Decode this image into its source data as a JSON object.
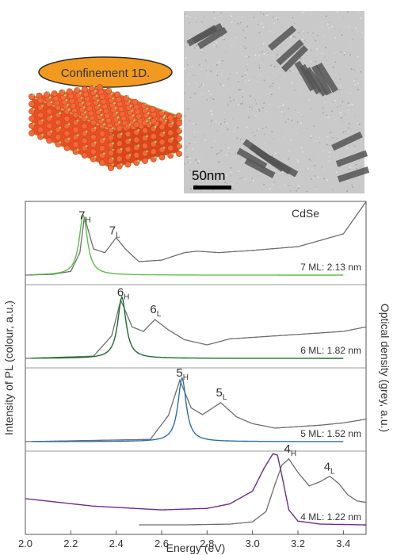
{
  "top": {
    "banner": "Confinement 1D.",
    "scale_bar": "50nm"
  },
  "chart_data": {
    "type": "line",
    "xlabel": "Energy (eV)",
    "ylabel_left": "Intensity of PL (colour, a.u.)",
    "ylabel_right": "Optical density (grey, a.u.)",
    "xlim": [
      2.0,
      3.5
    ],
    "xticks": [
      2.0,
      2.2,
      2.4,
      2.6,
      2.8,
      3.0,
      3.2,
      3.4
    ],
    "xtick_labels": [
      "2.0",
      "2.2",
      "2.4",
      "2.6",
      "2.8",
      "3.0",
      "3.2",
      "3.4"
    ],
    "panels": [
      {
        "name": "CdSe",
        "caption": "7 ML: 2.13 nm",
        "pl_color": "#5cbf4a",
        "absorption": {
          "x": [
            2.0,
            2.12,
            2.2,
            2.24,
            2.26,
            2.3,
            2.35,
            2.4,
            2.44,
            2.5,
            2.6,
            2.7,
            2.76,
            2.85,
            3.0,
            3.2,
            3.4,
            3.5
          ],
          "y": [
            0.0,
            0.01,
            0.05,
            0.3,
            0.78,
            0.35,
            0.3,
            0.5,
            0.35,
            0.18,
            0.2,
            0.3,
            0.32,
            0.3,
            0.33,
            0.38,
            0.55,
            0.98
          ]
        },
        "pl": {
          "center": 2.255,
          "width": 0.022,
          "peak": 0.8
        },
        "peaks": [
          {
            "sub": "H",
            "num": "7",
            "energy": 2.255
          },
          {
            "sub": "L",
            "num": "7",
            "energy": 2.39
          }
        ]
      },
      {
        "caption": "6 ML: 1.82 nm",
        "pl_color": "#1d6b2e",
        "absorption": {
          "x": [
            2.0,
            2.3,
            2.38,
            2.42,
            2.47,
            2.52,
            2.57,
            2.63,
            2.7,
            2.8,
            2.9,
            3.0,
            3.2,
            3.4,
            3.5
          ],
          "y": [
            0.0,
            0.03,
            0.3,
            0.78,
            0.42,
            0.36,
            0.52,
            0.38,
            0.25,
            0.18,
            0.26,
            0.28,
            0.32,
            0.36,
            0.42
          ]
        },
        "pl": {
          "center": 2.425,
          "width": 0.022,
          "peak": 0.82
        },
        "peaks": [
          {
            "sub": "H",
            "num": "6",
            "energy": 2.425
          },
          {
            "sub": "L",
            "num": "6",
            "energy": 2.57
          }
        ]
      },
      {
        "caption": "5 ML: 1.52 nm",
        "pl_color": "#2e6ea8",
        "absorption": {
          "x": [
            2.0,
            2.55,
            2.63,
            2.68,
            2.73,
            2.78,
            2.86,
            2.93,
            3.0,
            3.1,
            3.2,
            3.3,
            3.4,
            3.5
          ],
          "y": [
            0.0,
            0.03,
            0.35,
            0.82,
            0.45,
            0.36,
            0.52,
            0.33,
            0.24,
            0.18,
            0.2,
            0.22,
            0.25,
            0.3
          ]
        },
        "pl": {
          "center": 2.69,
          "width": 0.022,
          "peak": 0.85
        },
        "peaks": [
          {
            "sub": "H",
            "num": "5",
            "energy": 2.685
          },
          {
            "sub": "L",
            "num": "5",
            "energy": 2.86
          }
        ]
      },
      {
        "caption": "4 ML: 1.22 nm",
        "pl_color": "#6a2f8c",
        "absorption": {
          "x": [
            2.5,
            2.7,
            2.9,
            3.0,
            3.06,
            3.1,
            3.13,
            3.16,
            3.2,
            3.25,
            3.3,
            3.34,
            3.38,
            3.42,
            3.46,
            3.5
          ],
          "y": [
            0.0,
            0.0,
            0.01,
            0.04,
            0.18,
            0.55,
            0.8,
            0.88,
            0.7,
            0.52,
            0.58,
            0.65,
            0.55,
            0.4,
            0.32,
            0.3
          ]
        },
        "pl": {
          "x": [
            2.0,
            2.3,
            2.6,
            2.8,
            2.9,
            3.0,
            3.05,
            3.09,
            3.11,
            3.13,
            3.16,
            3.2,
            3.3,
            3.5
          ],
          "y": [
            0.35,
            0.25,
            0.2,
            0.22,
            0.28,
            0.45,
            0.75,
            0.95,
            0.93,
            0.65,
            0.2,
            0.05,
            0.01,
            0.0
          ]
        },
        "peaks": [
          {
            "sub": "H",
            "num": "4",
            "energy": 3.16
          },
          {
            "sub": "L",
            "num": "4",
            "energy": 3.335
          }
        ]
      }
    ]
  }
}
